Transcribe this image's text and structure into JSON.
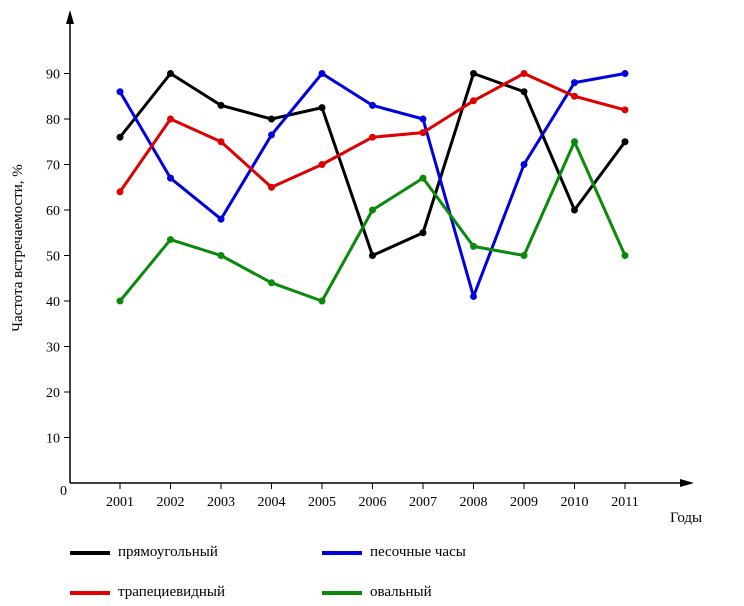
{
  "chart_data": {
    "type": "line",
    "xlabel": "Годы",
    "ylabel": "Частота   встречаемости, %",
    "origin_label": "0",
    "categories": [
      "2001",
      "2002",
      "2003",
      "2004",
      "2005",
      "2006",
      "2007",
      "2008",
      "2009",
      "2010",
      "2011"
    ],
    "ylim": [
      0,
      100
    ],
    "yticks": [
      10,
      20,
      30,
      40,
      50,
      60,
      70,
      80,
      90
    ],
    "grid": false,
    "legend_position": "bottom",
    "series": [
      {
        "name": "прямоугольный",
        "color": "#000000",
        "values": [
          76,
          90,
          83,
          80,
          82.5,
          50,
          55,
          90,
          86,
          60,
          75
        ]
      },
      {
        "name": "песочные часы",
        "color": "#0000e0",
        "values": [
          86,
          67,
          58,
          76.5,
          90,
          83,
          80,
          41,
          70,
          88,
          90
        ]
      },
      {
        "name": "трапециевидный",
        "color": "#e00000",
        "values": [
          64,
          80,
          75,
          65,
          70,
          76,
          77,
          84,
          90,
          85,
          82
        ]
      },
      {
        "name": "овальный",
        "color": "#0a8a0a",
        "values": [
          40,
          53.5,
          50,
          44,
          40,
          60,
          67,
          52,
          50,
          75,
          50
        ]
      }
    ]
  }
}
